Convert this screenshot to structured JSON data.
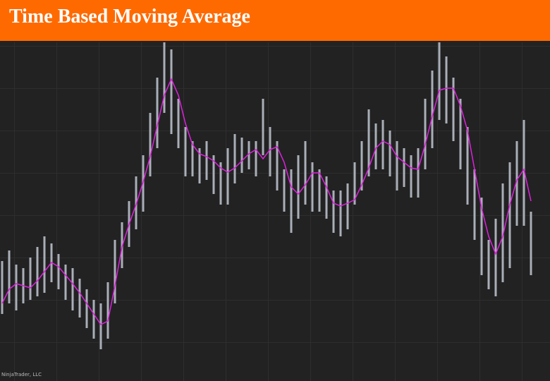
{
  "chart_data": {
    "type": "ohlc",
    "title": "Time Based Moving Average",
    "watermark": "NinjaTrader, LLC",
    "ylim": [
      0,
      480
    ],
    "grid": true,
    "bar_color": "#a9afb8",
    "high": [
      170,
      185,
      165,
      160,
      175,
      190,
      205,
      195,
      180,
      165,
      160,
      145,
      130,
      115,
      110,
      140,
      200,
      225,
      255,
      290,
      320,
      380,
      430,
      480,
      470,
      400,
      360,
      340,
      330,
      340,
      320,
      310,
      330,
      350,
      345,
      340,
      340,
      400,
      360,
      340,
      300,
      300,
      320,
      340,
      310,
      300,
      290,
      270,
      270,
      280,
      310,
      340,
      385,
      365,
      370,
      355,
      340,
      330,
      320,
      330,
      400,
      440,
      480,
      460,
      430,
      400,
      360,
      300,
      260,
      200,
      230,
      280,
      310,
      340,
      370,
      240
    ],
    "low": [
      95,
      110,
      100,
      110,
      115,
      120,
      125,
      140,
      130,
      115,
      100,
      90,
      75,
      60,
      45,
      60,
      110,
      160,
      190,
      215,
      240,
      290,
      330,
      380,
      350,
      330,
      290,
      290,
      280,
      285,
      265,
      250,
      250,
      280,
      295,
      300,
      290,
      320,
      290,
      270,
      240,
      210,
      230,
      250,
      240,
      240,
      230,
      210,
      205,
      215,
      250,
      270,
      290,
      300,
      300,
      290,
      270,
      275,
      260,
      260,
      300,
      330,
      370,
      365,
      340,
      300,
      250,
      200,
      150,
      130,
      120,
      140,
      160,
      220,
      220,
      150
    ],
    "moving_average": {
      "color": "#e020e0",
      "values": [
        110,
        130,
        138,
        135,
        132,
        142,
        155,
        168,
        162,
        150,
        138,
        125,
        110,
        95,
        80,
        85,
        135,
        190,
        222,
        250,
        282,
        318,
        362,
        405,
        428,
        405,
        365,
        335,
        322,
        318,
        312,
        302,
        296,
        302,
        312,
        322,
        328,
        315,
        328,
        332,
        310,
        275,
        265,
        278,
        295,
        295,
        275,
        252,
        248,
        252,
        257,
        278,
        302,
        330,
        340,
        335,
        318,
        310,
        302,
        300,
        335,
        375,
        412,
        415,
        415,
        390,
        355,
        300,
        245,
        205,
        180,
        205,
        250,
        285,
        300,
        255
      ]
    }
  }
}
